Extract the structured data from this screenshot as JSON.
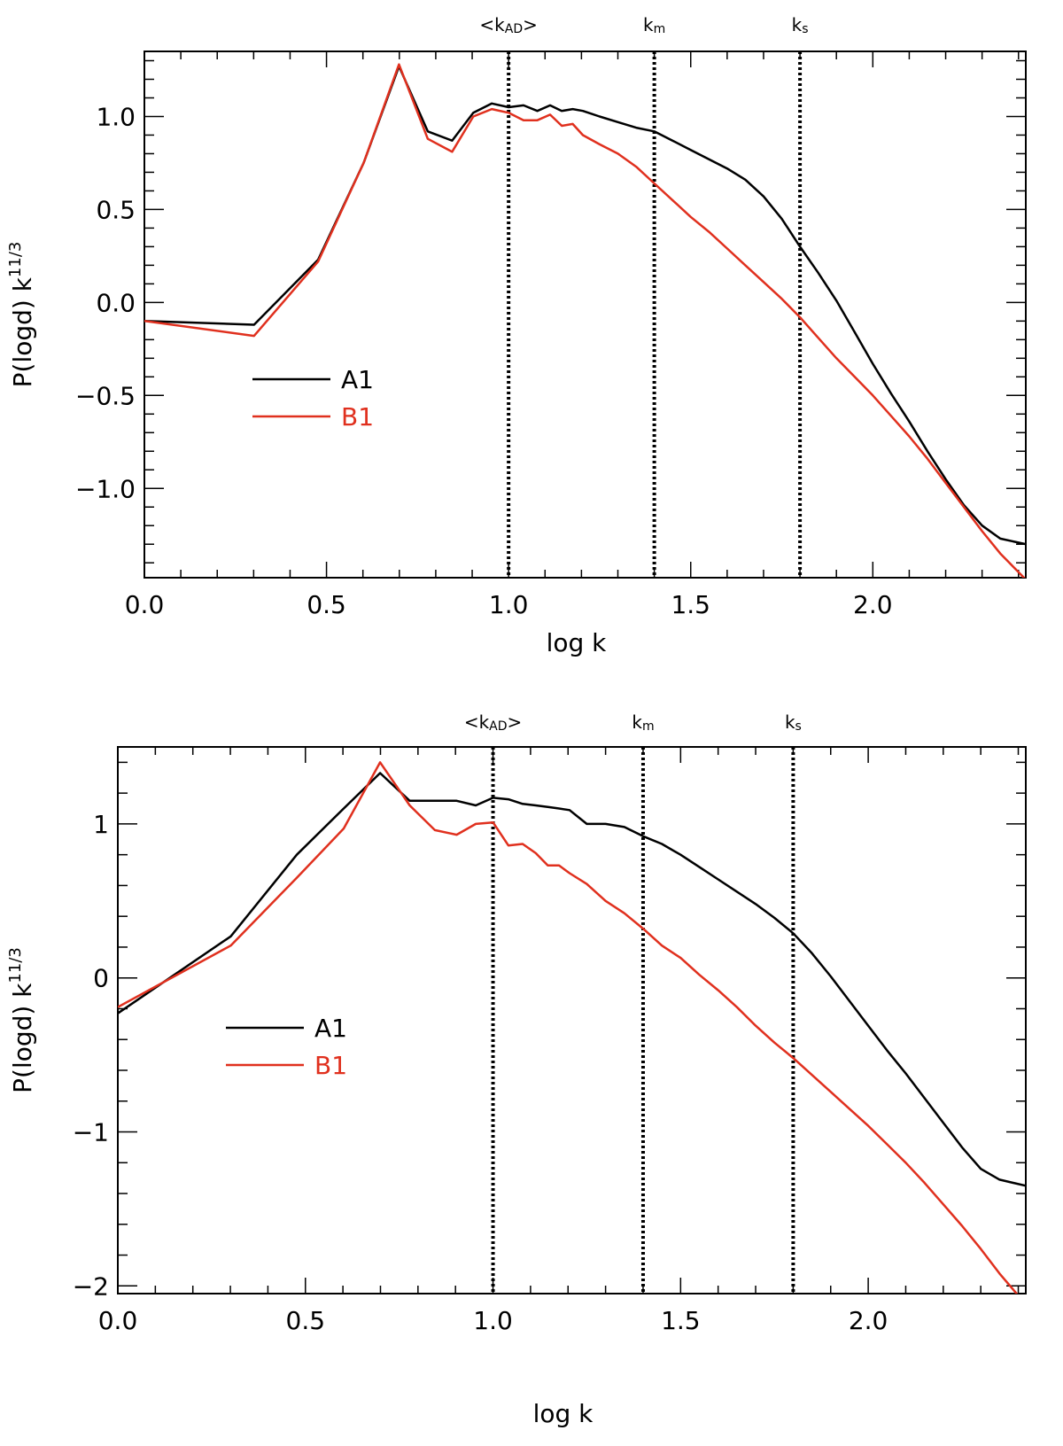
{
  "chart_data": [
    {
      "type": "line",
      "xlabel": "log k",
      "ylabel": "P(logd) k",
      "ylabel_sup": "11/3",
      "xlim": [
        0.0,
        2.42
      ],
      "ylim": [
        -1.48,
        1.35
      ],
      "xticks": [
        "0.0",
        "0.5",
        "1.0",
        "1.5",
        "2.0"
      ],
      "yticks": [
        "1.0",
        "0.5",
        "0.0",
        "-0.5",
        "-1.0"
      ],
      "ytick_values": [
        1.0,
        0.5,
        0.0,
        -0.5,
        -1.0
      ],
      "vertical_lines": [
        {
          "x": 1.0,
          "label_main": "<k",
          "label_sub": "AD",
          "label_end": ">"
        },
        {
          "x": 1.4,
          "label_main": "k",
          "label_sub": "m",
          "label_end": ""
        },
        {
          "x": 1.8,
          "label_main": "k",
          "label_sub": "s",
          "label_end": ""
        }
      ],
      "legend": {
        "position": "left-middle",
        "entries": [
          "A1",
          "B1"
        ]
      },
      "series": [
        {
          "name": "A1",
          "color": "#000000",
          "x": [
            0.0,
            0.301,
            0.477,
            0.602,
            0.699,
            0.778,
            0.845,
            0.903,
            0.954,
            1.0,
            1.041,
            1.079,
            1.114,
            1.146,
            1.176,
            1.204,
            1.25,
            1.3,
            1.35,
            1.4,
            1.45,
            1.5,
            1.55,
            1.6,
            1.65,
            1.7,
            1.75,
            1.8,
            1.85,
            1.9,
            1.95,
            2.0,
            2.05,
            2.1,
            2.15,
            2.2,
            2.25,
            2.3,
            2.35,
            2.42
          ],
          "y": [
            -0.1,
            -0.12,
            0.23,
            0.75,
            1.27,
            0.92,
            0.87,
            1.02,
            1.07,
            1.05,
            1.06,
            1.03,
            1.06,
            1.03,
            1.04,
            1.03,
            1.0,
            0.97,
            0.94,
            0.92,
            0.87,
            0.82,
            0.77,
            0.72,
            0.66,
            0.57,
            0.45,
            0.3,
            0.16,
            0.01,
            -0.16,
            -0.33,
            -0.49,
            -0.64,
            -0.8,
            -0.95,
            -1.09,
            -1.2,
            -1.27,
            -1.3
          ]
        },
        {
          "name": "B1",
          "color": "#e0301e",
          "x": [
            0.0,
            0.301,
            0.477,
            0.602,
            0.699,
            0.778,
            0.845,
            0.903,
            0.954,
            1.0,
            1.041,
            1.079,
            1.114,
            1.146,
            1.176,
            1.204,
            1.25,
            1.3,
            1.35,
            1.4,
            1.45,
            1.5,
            1.55,
            1.6,
            1.65,
            1.7,
            1.75,
            1.8,
            1.85,
            1.9,
            1.95,
            2.0,
            2.05,
            2.1,
            2.15,
            2.2,
            2.25,
            2.3,
            2.35,
            2.42
          ],
          "y": [
            -0.1,
            -0.18,
            0.22,
            0.75,
            1.28,
            0.88,
            0.81,
            1.0,
            1.04,
            1.02,
            0.98,
            0.98,
            1.01,
            0.95,
            0.96,
            0.9,
            0.85,
            0.8,
            0.73,
            0.64,
            0.55,
            0.46,
            0.38,
            0.29,
            0.2,
            0.11,
            0.02,
            -0.08,
            -0.19,
            -0.3,
            -0.4,
            -0.5,
            -0.61,
            -0.72,
            -0.84,
            -0.97,
            -1.1,
            -1.23,
            -1.35,
            -1.49
          ]
        }
      ]
    },
    {
      "type": "line",
      "xlabel": "log k",
      "ylabel": "P(logd) k",
      "ylabel_sup": "11/3",
      "xlim": [
        0.0,
        2.42
      ],
      "ylim": [
        -2.05,
        1.5
      ],
      "xticks": [
        "0.0",
        "0.5",
        "1.0",
        "1.5",
        "2.0"
      ],
      "yticks": [
        "1",
        "0",
        "-1",
        "-2"
      ],
      "ytick_values": [
        1,
        0,
        -1,
        -2
      ],
      "vertical_lines": [
        {
          "x": 1.0,
          "label_main": "<k",
          "label_sub": "AD",
          "label_end": ">"
        },
        {
          "x": 1.4,
          "label_main": "k",
          "label_sub": "m",
          "label_end": ""
        },
        {
          "x": 1.8,
          "label_main": "k",
          "label_sub": "s",
          "label_end": ""
        }
      ],
      "legend": {
        "position": "left-middle",
        "entries": [
          "A1",
          "B1"
        ]
      },
      "series": [
        {
          "name": "A1",
          "color": "#000000",
          "x": [
            0.0,
            0.301,
            0.477,
            0.602,
            0.699,
            0.778,
            0.845,
            0.903,
            0.954,
            1.0,
            1.041,
            1.079,
            1.114,
            1.146,
            1.176,
            1.204,
            1.25,
            1.3,
            1.35,
            1.4,
            1.45,
            1.5,
            1.55,
            1.6,
            1.65,
            1.7,
            1.75,
            1.8,
            1.85,
            1.9,
            1.95,
            2.0,
            2.05,
            2.1,
            2.15,
            2.2,
            2.25,
            2.3,
            2.35,
            2.42
          ],
          "y": [
            -0.23,
            0.27,
            0.8,
            1.1,
            1.33,
            1.15,
            1.15,
            1.15,
            1.12,
            1.17,
            1.16,
            1.13,
            1.12,
            1.11,
            1.1,
            1.09,
            1.0,
            1.0,
            0.98,
            0.92,
            0.87,
            0.8,
            0.72,
            0.64,
            0.56,
            0.48,
            0.39,
            0.29,
            0.16,
            0.01,
            -0.15,
            -0.31,
            -0.47,
            -0.62,
            -0.78,
            -0.94,
            -1.1,
            -1.24,
            -1.31,
            -1.35
          ]
        },
        {
          "name": "B1",
          "color": "#e0301e",
          "x": [
            0.0,
            0.301,
            0.477,
            0.602,
            0.699,
            0.778,
            0.845,
            0.903,
            0.954,
            1.0,
            1.041,
            1.079,
            1.114,
            1.146,
            1.176,
            1.204,
            1.25,
            1.3,
            1.35,
            1.4,
            1.45,
            1.5,
            1.55,
            1.6,
            1.65,
            1.7,
            1.75,
            1.8,
            1.85,
            1.9,
            1.95,
            2.0,
            2.05,
            2.1,
            2.15,
            2.2,
            2.25,
            2.3,
            2.35,
            2.42
          ],
          "y": [
            -0.19,
            0.21,
            0.65,
            0.97,
            1.4,
            1.12,
            0.96,
            0.93,
            1.0,
            1.01,
            0.86,
            0.87,
            0.81,
            0.73,
            0.73,
            0.68,
            0.61,
            0.5,
            0.42,
            0.32,
            0.21,
            0.13,
            0.02,
            -0.08,
            -0.19,
            -0.31,
            -0.42,
            -0.52,
            -0.63,
            -0.74,
            -0.85,
            -0.96,
            -1.08,
            -1.2,
            -1.33,
            -1.47,
            -1.61,
            -1.76,
            -1.92,
            -2.12
          ]
        }
      ]
    }
  ]
}
